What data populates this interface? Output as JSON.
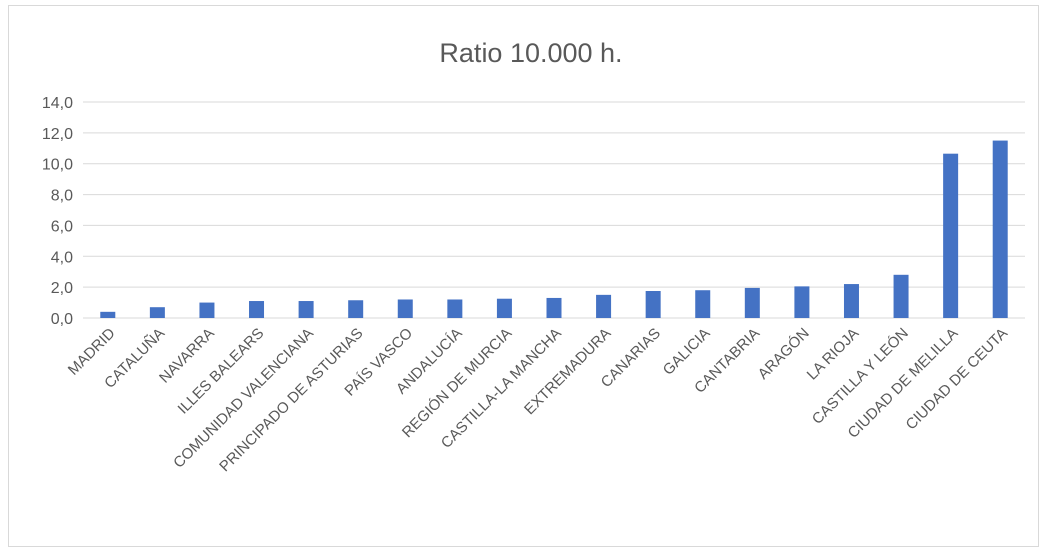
{
  "chart_data": {
    "type": "bar",
    "title": "Ratio 10.000 h.",
    "categories": [
      "MADRID",
      "CATALUÑA",
      "NAVARRA",
      "ILLES BALEARS",
      "COMUNIDAD VALENCIANA",
      "PRINCIPADO DE ASTURIAS",
      "PAÍS VASCO",
      "ANDALUCÍA",
      "REGIÓN DE MURCIA",
      "CASTILLA-LA MANCHA",
      "EXTREMADURA",
      "CANARIAS",
      "GALICIA",
      "CANTABRIA",
      "ARAGÓN",
      "LA RIOJA",
      "CASTILLA Y LEÓN",
      "CIUDAD DE MELILLA",
      "CIUDAD DE CEUTA"
    ],
    "values": [
      0.4,
      0.7,
      1.0,
      1.1,
      1.1,
      1.15,
      1.2,
      1.2,
      1.25,
      1.3,
      1.5,
      1.75,
      1.8,
      1.95,
      2.05,
      2.2,
      2.8,
      10.65,
      11.5
    ],
    "ylim": [
      0,
      14
    ],
    "yticks": [
      "0,0",
      "2,0",
      "4,0",
      "6,0",
      "8,0",
      "10,0",
      "12,0",
      "14,0"
    ],
    "xlabel": "",
    "ylabel": "",
    "grid": true,
    "legend": "none",
    "bar_color": "#4472c4"
  }
}
